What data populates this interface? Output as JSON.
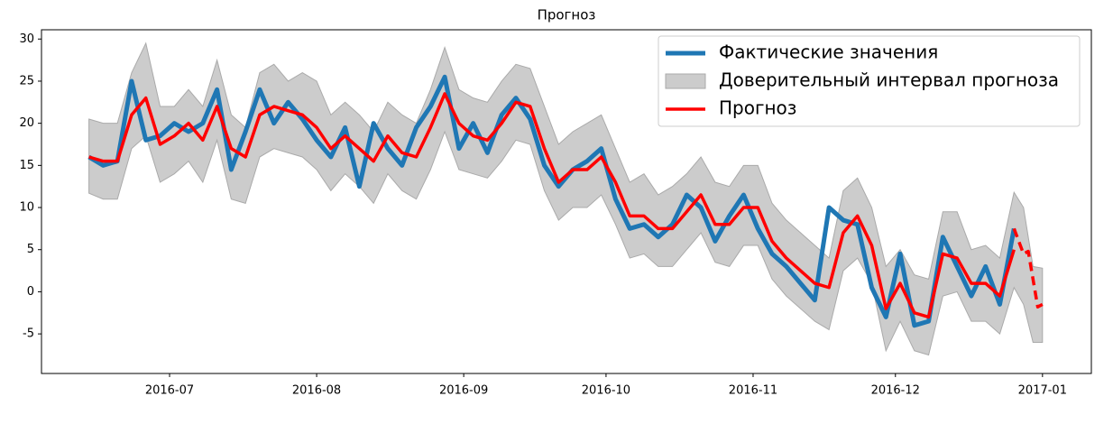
{
  "chart_data": {
    "type": "line",
    "title": "Прогноз",
    "xlim": [
      155,
      376.3
    ],
    "ylim": [
      -9.7,
      31.1
    ],
    "yticks": [
      -5,
      0,
      5,
      10,
      15,
      20,
      25,
      30
    ],
    "xticks": [
      {
        "value": 182,
        "label": "2016-07"
      },
      {
        "value": 213,
        "label": "2016-08"
      },
      {
        "value": 244,
        "label": "2016-09"
      },
      {
        "value": 274,
        "label": "2016-10"
      },
      {
        "value": 305,
        "label": "2016-11"
      },
      {
        "value": 335,
        "label": "2016-12"
      },
      {
        "value": 366,
        "label": "2017-01"
      }
    ],
    "grid": false,
    "legend": "upper right",
    "x": [
      165,
      168,
      171,
      174,
      177,
      180,
      183,
      186,
      189,
      192,
      195,
      198,
      201,
      204,
      207,
      210,
      213,
      216,
      219,
      222,
      225,
      228,
      231,
      234,
      237,
      240,
      243,
      246,
      249,
      252,
      255,
      258,
      261,
      264,
      267,
      270,
      273,
      276,
      279,
      282,
      285,
      288,
      291,
      294,
      297,
      300,
      303,
      306,
      309,
      312,
      315,
      318,
      321,
      324,
      327,
      330,
      333,
      336,
      339,
      342,
      345,
      348,
      351,
      354,
      357,
      360
    ],
    "series": [
      {
        "name": "Фактические значения",
        "color": "#1f77b4",
        "values": [
          16,
          15,
          15.5,
          25,
          18,
          18.5,
          20,
          19,
          20,
          24,
          14.5,
          19,
          24,
          20,
          22.5,
          20.5,
          18,
          16,
          19.5,
          12.5,
          20,
          17,
          15,
          19.5,
          22,
          25.5,
          17,
          20,
          16.5,
          21,
          23,
          20.5,
          15,
          12.5,
          14.5,
          15.5,
          17,
          11,
          7.5,
          8,
          6.5,
          8,
          11.5,
          10,
          6,
          9,
          11.5,
          7.5,
          4.5,
          3,
          1,
          -1,
          10,
          8.5,
          8,
          0.5,
          -3,
          4.5,
          -4,
          -3.5,
          6.5,
          3,
          -0.5,
          3,
          -1.5,
          7.5
        ]
      },
      {
        "name": "Прогноз",
        "color": "#ff0000",
        "values": [
          16,
          15.5,
          15.5,
          21,
          23,
          17.5,
          18.5,
          20,
          18,
          22,
          17,
          16,
          21,
          22,
          21.5,
          21,
          19.5,
          17,
          18.5,
          17,
          15.5,
          18.5,
          16.5,
          16,
          19.5,
          23.5,
          20,
          18.5,
          18,
          20,
          22.5,
          22,
          17,
          13,
          14.5,
          14.5,
          16,
          13,
          9,
          9,
          7.5,
          7.5,
          9.5,
          11.5,
          8,
          8,
          10,
          10,
          6,
          4,
          2.5,
          1,
          0.5,
          7,
          9,
          5.5,
          -2,
          1,
          -2.5,
          -3,
          4.5,
          4,
          1,
          1,
          -0.5,
          5
        ]
      }
    ],
    "forecast_extension": {
      "color": "#ff0000",
      "x": [
        360,
        361,
        362,
        363,
        365,
        366
      ],
      "values": [
        7.5,
        6,
        4.5,
        4.8,
        -1.8,
        -1.5
      ]
    },
    "interval": {
      "name": "Доверительный интервал прогноза",
      "color": "#cccccc",
      "x": [
        165,
        168,
        171,
        174,
        177,
        180,
        183,
        186,
        189,
        192,
        195,
        198,
        201,
        204,
        207,
        210,
        213,
        216,
        219,
        222,
        225,
        228,
        231,
        234,
        237,
        240,
        243,
        246,
        249,
        252,
        255,
        258,
        261,
        264,
        267,
        270,
        273,
        276,
        279,
        282,
        285,
        288,
        291,
        294,
        297,
        300,
        303,
        306,
        309,
        312,
        315,
        318,
        321,
        324,
        327,
        330,
        333,
        336,
        339,
        342,
        345,
        348,
        351,
        354,
        357,
        360,
        362,
        364,
        366
      ],
      "upper": [
        20.5,
        20,
        20,
        26,
        29.5,
        22,
        22,
        24,
        22,
        27.5,
        21,
        19.5,
        26,
        27,
        25,
        26,
        25,
        21,
        22.5,
        21,
        19,
        22.5,
        21,
        20,
        24,
        29,
        24,
        23,
        22.5,
        25,
        27,
        26.5,
        22,
        17.5,
        19,
        20,
        21,
        17,
        13,
        14,
        11.5,
        12.5,
        14,
        16,
        13,
        12.5,
        15,
        15,
        10.5,
        8.5,
        7,
        5.5,
        4,
        12,
        13.5,
        10,
        3,
        5,
        2,
        1.5,
        9.5,
        9.5,
        5,
        5.5,
        4,
        11.8,
        10,
        3,
        2.8
      ],
      "lower": [
        11.7,
        11,
        11,
        17,
        18.5,
        13,
        14,
        15.5,
        13,
        18,
        11,
        10.5,
        16,
        17,
        16.5,
        16,
        14.5,
        12,
        14,
        12.5,
        10.5,
        14,
        12,
        11,
        14.5,
        19,
        14.5,
        14,
        13.5,
        15.5,
        18,
        17.5,
        12,
        8.5,
        10,
        10,
        11.5,
        8,
        4,
        4.5,
        3,
        3,
        5,
        7,
        3.5,
        3,
        5.5,
        5.5,
        1.5,
        -0.5,
        -2,
        -3.5,
        -4.5,
        2.5,
        4,
        1,
        -7,
        -3.5,
        -7,
        -7.5,
        -0.5,
        0,
        -3.5,
        -3.5,
        -5,
        0.5,
        -1.5,
        -6,
        -6
      ]
    }
  }
}
